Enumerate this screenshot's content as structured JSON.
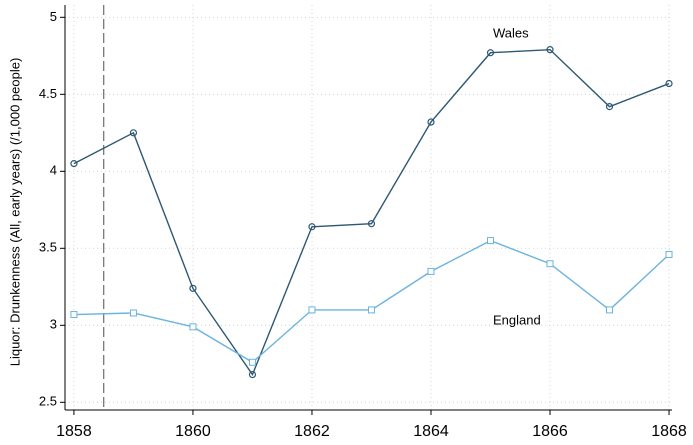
{
  "chart_data": {
    "type": "line",
    "y_label": "Liquor: Drunkenness (All, early years) (/1,000 people)",
    "x": [
      1858,
      1859,
      1860,
      1861,
      1862,
      1863,
      1864,
      1865,
      1866,
      1867,
      1868
    ],
    "series": [
      {
        "name": "Wales",
        "color": "#2d5872",
        "marker": "circle",
        "values": [
          4.05,
          4.25,
          3.24,
          2.68,
          3.64,
          3.66,
          4.32,
          4.77,
          4.79,
          4.42,
          4.57
        ]
      },
      {
        "name": "England",
        "color": "#6bb3e0",
        "marker": "square",
        "values": [
          3.07,
          3.08,
          2.99,
          2.76,
          3.1,
          3.1,
          3.35,
          3.55,
          3.4,
          3.1,
          3.46
        ]
      }
    ],
    "xlim": [
      1857.85,
      1868.05
    ],
    "xticks": [
      1858,
      1860,
      1862,
      1864,
      1866,
      1868
    ],
    "ylim": [
      2.45,
      5.08
    ],
    "yticks": [
      2.5,
      3,
      3.5,
      4,
      4.5,
      5
    ],
    "reference_line_x": 1858.5,
    "grid": true
  }
}
